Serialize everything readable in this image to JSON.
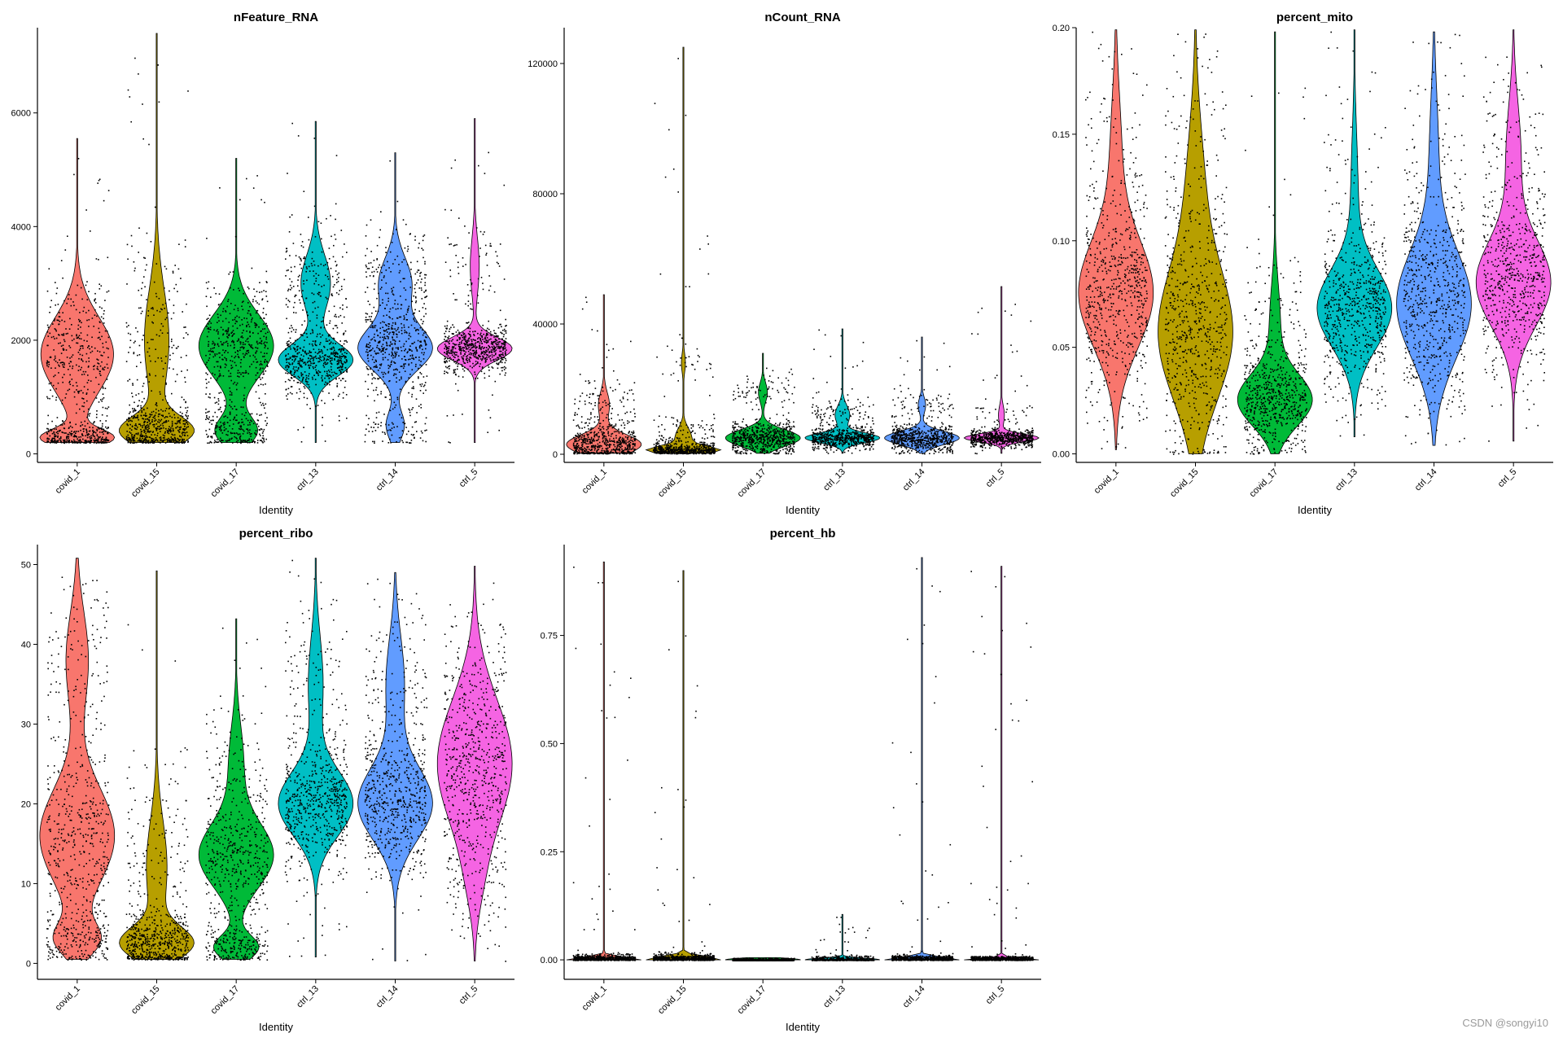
{
  "watermark": "CSDN @songyi10",
  "groups": [
    "covid_1",
    "covid_15",
    "covid_17",
    "ctrl_13",
    "ctrl_14",
    "ctrl_5"
  ],
  "colors": [
    "#F8766D",
    "#B79F00",
    "#00BA38",
    "#00BFC4",
    "#619CFF",
    "#F564E3"
  ],
  "chart_data": [
    {
      "type": "violin",
      "title": "nFeature_RNA",
      "xlabel": "Identity",
      "ylabel": "",
      "ylim": [
        -150,
        7500
      ],
      "yticks": [
        0,
        2000,
        4000,
        6000
      ],
      "yticklabels": [
        "0",
        "2000",
        "4000",
        "6000"
      ],
      "series": [
        {
          "name": "covid_1",
          "min": 200,
          "max": 5550,
          "modes": [
            [
              1750,
              650,
              1.0
            ],
            [
              280,
              150,
              0.95
            ]
          ]
        },
        {
          "name": "covid_15",
          "min": 200,
          "max": 7400,
          "modes": [
            [
              400,
              250,
              1.0
            ],
            [
              2000,
              900,
              0.35
            ]
          ]
        },
        {
          "name": "covid_17",
          "min": 200,
          "max": 5200,
          "modes": [
            [
              1900,
              550,
              1.0
            ],
            [
              400,
              250,
              0.55
            ]
          ]
        },
        {
          "name": "ctrl_13",
          "min": 200,
          "max": 5850,
          "modes": [
            [
              1650,
              280,
              1.0
            ],
            [
              3000,
              500,
              0.4
            ]
          ]
        },
        {
          "name": "ctrl_14",
          "min": 200,
          "max": 5300,
          "modes": [
            [
              1850,
              380,
              1.0
            ],
            [
              3000,
              450,
              0.45
            ],
            [
              500,
              250,
              0.25
            ]
          ]
        },
        {
          "name": "ctrl_5",
          "min": 200,
          "max": 5900,
          "modes": [
            [
              1850,
              200,
              1.0
            ],
            [
              3300,
              500,
              0.12
            ]
          ]
        }
      ]
    },
    {
      "type": "violin",
      "title": "nCount_RNA",
      "xlabel": "Identity",
      "ylabel": "",
      "ylim": [
        -2500,
        131000
      ],
      "yticks": [
        0,
        40000,
        80000,
        120000
      ],
      "yticklabels": [
        "0",
        "40000",
        "80000",
        "120000"
      ],
      "series": [
        {
          "name": "covid_1",
          "min": 300,
          "max": 49000,
          "modes": [
            [
              3000,
              3000,
              1.0
            ],
            [
              15000,
              4000,
              0.15
            ]
          ]
        },
        {
          "name": "covid_15",
          "min": 300,
          "max": 125000,
          "modes": [
            [
              1200,
              1200,
              1.0
            ],
            [
              5000,
              3000,
              0.25
            ],
            [
              28000,
              3000,
              0.06
            ]
          ]
        },
        {
          "name": "covid_17",
          "min": 300,
          "max": 31000,
          "modes": [
            [
              5000,
              2500,
              1.0
            ],
            [
              19000,
              3000,
              0.12
            ]
          ]
        },
        {
          "name": "ctrl_13",
          "min": 300,
          "max": 38500,
          "modes": [
            [
              5000,
              1500,
              1.0
            ],
            [
              12000,
              3000,
              0.2
            ]
          ]
        },
        {
          "name": "ctrl_14",
          "min": 300,
          "max": 36000,
          "modes": [
            [
              5000,
              2000,
              1.0
            ],
            [
              15000,
              2500,
              0.1
            ]
          ]
        },
        {
          "name": "ctrl_5",
          "min": 300,
          "max": 51500,
          "modes": [
            [
              5000,
              1200,
              1.0
            ],
            [
              12000,
              3000,
              0.08
            ]
          ]
        }
      ]
    },
    {
      "type": "violin",
      "title": "percent_mito",
      "xlabel": "Identity",
      "ylabel": "",
      "ylim": [
        -0.004,
        0.2
      ],
      "yticks": [
        0,
        0.05,
        0.1,
        0.15,
        0.2
      ],
      "yticklabels": [
        "0.00",
        "0.05",
        "0.10",
        "0.15",
        "0.20"
      ],
      "series": [
        {
          "name": "covid_1",
          "min": 0.002,
          "max": 0.199,
          "modes": [
            [
              0.075,
              0.025,
              1.0
            ],
            [
              0.14,
              0.03,
              0.15
            ]
          ]
        },
        {
          "name": "covid_15",
          "min": 0.0,
          "max": 0.199,
          "modes": [
            [
              0.055,
              0.03,
              1.0
            ],
            [
              0.12,
              0.035,
              0.25
            ]
          ]
        },
        {
          "name": "covid_17",
          "min": 0.0,
          "max": 0.198,
          "modes": [
            [
              0.025,
              0.012,
              1.0
            ],
            [
              0.06,
              0.02,
              0.15
            ]
          ]
        },
        {
          "name": "ctrl_13",
          "min": 0.008,
          "max": 0.199,
          "modes": [
            [
              0.068,
              0.018,
              1.0
            ],
            [
              0.12,
              0.03,
              0.1
            ]
          ]
        },
        {
          "name": "ctrl_14",
          "min": 0.004,
          "max": 0.198,
          "modes": [
            [
              0.07,
              0.025,
              1.0
            ],
            [
              0.14,
              0.03,
              0.12
            ]
          ]
        },
        {
          "name": "ctrl_5",
          "min": 0.006,
          "max": 0.199,
          "modes": [
            [
              0.08,
              0.02,
              1.0
            ],
            [
              0.14,
              0.025,
              0.2
            ]
          ]
        }
      ]
    },
    {
      "type": "violin",
      "title": "percent_ribo",
      "xlabel": "Identity",
      "ylabel": "",
      "ylim": [
        -2,
        52.5
      ],
      "yticks": [
        0,
        10,
        20,
        30,
        40,
        50
      ],
      "yticklabels": [
        "0",
        "10",
        "20",
        "30",
        "40",
        "50"
      ],
      "series": [
        {
          "name": "covid_1",
          "min": 0.5,
          "max": 50.8,
          "modes": [
            [
              16,
              6,
              1.0
            ],
            [
              3,
              2,
              0.55
            ],
            [
              38,
              6,
              0.3
            ]
          ]
        },
        {
          "name": "covid_15",
          "min": 0.5,
          "max": 49.2,
          "modes": [
            [
              2.5,
              2,
              1.0
            ],
            [
              12,
              6,
              0.3
            ]
          ]
        },
        {
          "name": "covid_17",
          "min": 0.5,
          "max": 43.2,
          "modes": [
            [
              13.5,
              4,
              1.0
            ],
            [
              2,
              1.5,
              0.6
            ],
            [
              25,
              5,
              0.2
            ]
          ]
        },
        {
          "name": "ctrl_13",
          "min": 0.8,
          "max": 50.8,
          "modes": [
            [
              20,
              4,
              1.0
            ],
            [
              35,
              6,
              0.2
            ]
          ]
        },
        {
          "name": "ctrl_14",
          "min": 0.3,
          "max": 49.0,
          "modes": [
            [
              20,
              4.5,
              1.0
            ],
            [
              35,
              6,
              0.25
            ]
          ]
        },
        {
          "name": "ctrl_5",
          "min": 0.3,
          "max": 49.8,
          "modes": [
            [
              25,
              8,
              1.0
            ],
            [
              10,
              4,
              0.1
            ]
          ]
        }
      ]
    },
    {
      "type": "violin",
      "title": "percent_hb",
      "xlabel": "Identity",
      "ylabel": "",
      "ylim": [
        -0.045,
        0.96
      ],
      "yticks": [
        0,
        0.25,
        0.5,
        0.75
      ],
      "yticklabels": [
        "0.00",
        "0.25",
        "0.50",
        "0.75"
      ],
      "series": [
        {
          "name": "covid_1",
          "min": 0,
          "max": 0.92,
          "modes": [
            [
              0.0,
              0.006,
              1.0
            ]
          ]
        },
        {
          "name": "covid_15",
          "min": 0,
          "max": 0.9,
          "modes": [
            [
              0.0,
              0.008,
              1.0
            ]
          ]
        },
        {
          "name": "covid_17",
          "min": 0,
          "max": 0.005,
          "modes": [
            [
              0.0,
              0.004,
              1.0
            ]
          ]
        },
        {
          "name": "ctrl_13",
          "min": 0,
          "max": 0.105,
          "modes": [
            [
              0.0,
              0.004,
              1.0
            ]
          ]
        },
        {
          "name": "ctrl_14",
          "min": 0,
          "max": 0.93,
          "modes": [
            [
              0.0,
              0.006,
              1.0
            ]
          ]
        },
        {
          "name": "ctrl_5",
          "min": 0,
          "max": 0.91,
          "modes": [
            [
              0.0,
              0.004,
              1.0
            ]
          ]
        }
      ]
    }
  ]
}
